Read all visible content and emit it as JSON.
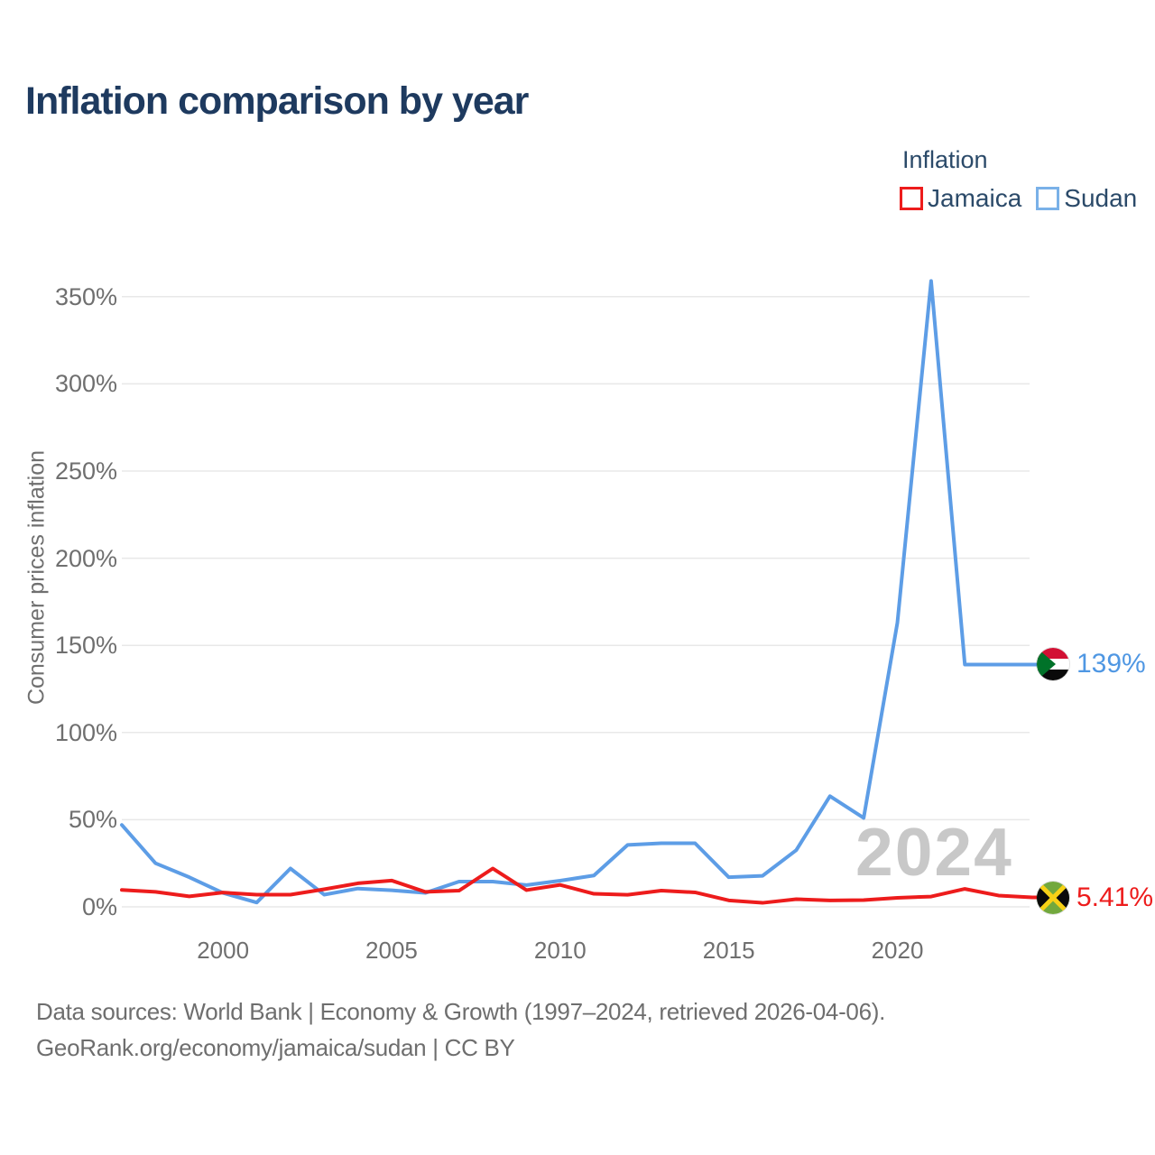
{
  "header": {
    "title": "Inflation comparison by year"
  },
  "legend": {
    "title": "Inflation",
    "items": [
      {
        "label": "Jamaica",
        "swatch_color": "#ed1c1c"
      },
      {
        "label": "Sudan",
        "swatch_color": "#7ab1e8"
      }
    ]
  },
  "watermark": "2024",
  "footer": {
    "line1": "Data sources: World Bank | Economy & Growth (1997–2024, retrieved 2026-04-06).",
    "line2": "GeoRank.org/economy/jamaica/sudan | CC BY"
  },
  "colors": {
    "title": "#1e3a5f",
    "axis_text": "#6f6f6f",
    "gridline": "#e8e8e8",
    "watermark": "#c8c8c8",
    "jamaica": "#ed1c1c",
    "sudan": "#5d9de6"
  },
  "chart_data": {
    "type": "line",
    "title": "Inflation comparison by year",
    "xlabel": "",
    "ylabel": "Consumer prices inflation",
    "x": [
      1997,
      1998,
      1999,
      2000,
      2001,
      2002,
      2003,
      2004,
      2005,
      2006,
      2007,
      2008,
      2009,
      2010,
      2011,
      2012,
      2013,
      2014,
      2015,
      2016,
      2017,
      2018,
      2019,
      2020,
      2021,
      2022,
      2023,
      2024
    ],
    "xticks": [
      2000,
      2005,
      2010,
      2015,
      2020
    ],
    "yticks": [
      {
        "label": "0%",
        "value": 0
      },
      {
        "label": "50%",
        "value": 50
      },
      {
        "label": "100%",
        "value": 100
      },
      {
        "label": "150%",
        "value": 150
      },
      {
        "label": "200%",
        "value": 200
      },
      {
        "label": "250%",
        "value": 250
      },
      {
        "label": "300%",
        "value": 300
      },
      {
        "label": "350%",
        "value": 350
      }
    ],
    "ylim": [
      0,
      372
    ],
    "grid": "horizontal",
    "legend_position": "top-right",
    "series": [
      {
        "name": "Jamaica",
        "color": "#ed1c1c",
        "label_color": "#ed1c1c",
        "end_label": "5.41%",
        "values": [
          9.7,
          8.6,
          6.0,
          8.2,
          7.0,
          7.0,
          10.1,
          13.5,
          15.1,
          8.6,
          9.3,
          22.0,
          9.6,
          12.6,
          7.5,
          6.9,
          9.3,
          8.3,
          3.7,
          2.3,
          4.4,
          3.7,
          3.9,
          5.2,
          5.9,
          10.3,
          6.5,
          5.41
        ]
      },
      {
        "name": "Sudan",
        "color": "#5d9de6",
        "label_color": "#4f97e3",
        "end_label": "139%",
        "values": [
          47,
          25,
          17,
          8,
          2.5,
          22,
          7,
          10.5,
          9.5,
          8,
          14.5,
          14.5,
          12.5,
          15,
          18,
          35.5,
          36.5,
          36.5,
          17,
          17.8,
          32.5,
          63.5,
          51,
          163,
          359,
          139,
          139,
          139
        ]
      }
    ]
  }
}
